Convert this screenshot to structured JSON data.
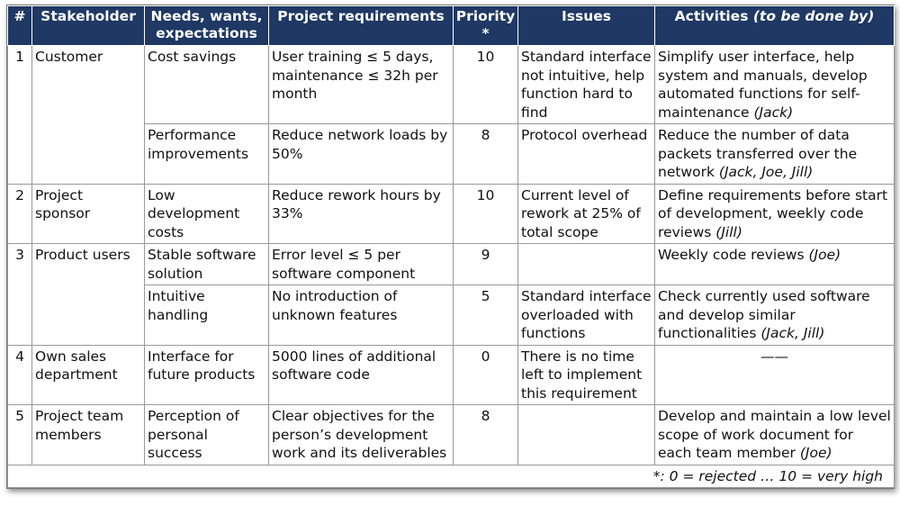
{
  "header": {
    "number": "#",
    "stakeholder": "Stakeholder",
    "needs": "Needs, wants, expectations",
    "requirements": "Project requirements",
    "priority": "Priority *",
    "issues": "Issues",
    "activities": "Activities",
    "activities_note": "(to be done by)"
  },
  "stakeholders": [
    {
      "number": "1",
      "name": "Customer",
      "items": [
        {
          "need": "Cost savings",
          "requirements": "User training ≤ 5 days, maintenance ≤ 32h per month",
          "priority": 10,
          "issues": "Standard interface not intuitive, help function hard to find",
          "activities": "Simplify user interface, help system and manuals, develop automated functions for self-maintenance",
          "by": "(Jack)"
        },
        {
          "need": "Performance improvements",
          "requirements": "Reduce network loads by 50%",
          "priority": 8,
          "issues": "Protocol overhead",
          "activities": "Reduce the number of data packets transferred over the network",
          "by": "(Jack, Joe, Jill)"
        }
      ]
    },
    {
      "number": "2",
      "name": "Project sponsor",
      "items": [
        {
          "need": "Low development costs",
          "requirements": "Reduce rework hours by 33%",
          "priority": 10,
          "issues": "Current level of rework at 25% of total scope",
          "activities": "Define requirements before start of development, weekly code reviews",
          "by": "(Jill)"
        }
      ]
    },
    {
      "number": "3",
      "name": "Product users",
      "items": [
        {
          "need": "Stable software solution",
          "requirements": "Error level ≤ 5 per software component",
          "priority": 9,
          "activities": "Weekly code reviews",
          "by": "(Joe)"
        },
        {
          "need": "Intuitive handling",
          "requirements": "No introduction of unknown features",
          "priority": 5,
          "issues": "Standard interface overloaded with functions",
          "activities": "Check currently used software and develop similar functionalities",
          "by": "(Jack, Jill)"
        }
      ]
    },
    {
      "number": "4",
      "name": "Own sales department",
      "items": [
        {
          "need": "Interface for future products",
          "requirements": "5000 lines of additional software code",
          "priority": 0,
          "issues": "There is no time left to implement this requirement",
          "activities": "——"
        }
      ]
    },
    {
      "number": "5",
      "name": "Project team members",
      "items": [
        {
          "need": "Perception of personal success",
          "requirements": "Clear objectives for the person’s development work and its deliverables",
          "priority": 8,
          "activities": "Develop and maintain a low level scope of work document for each team member",
          "by": "(Joe)"
        }
      ]
    }
  ],
  "footnote": "*: 0 = rejected  …  10 = very high"
}
